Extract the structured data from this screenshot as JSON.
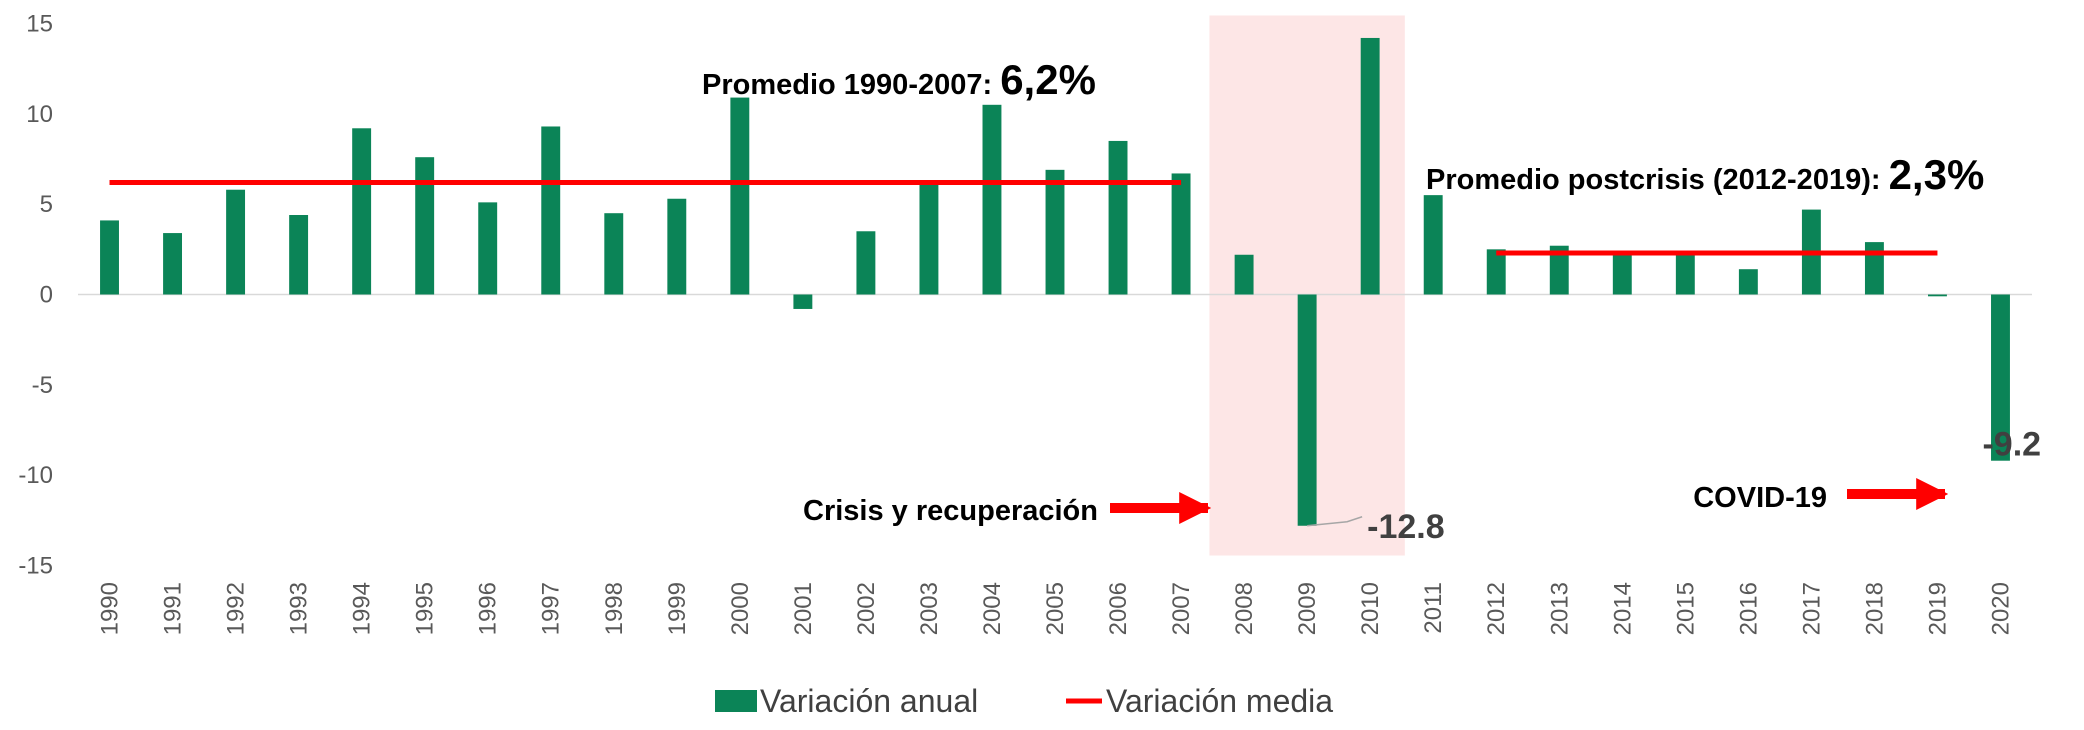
{
  "chart_data": {
    "type": "bar",
    "categories": [
      "1990",
      "1991",
      "1992",
      "1993",
      "1994",
      "1995",
      "1996",
      "1997",
      "1998",
      "1999",
      "2000",
      "2001",
      "2002",
      "2003",
      "2004",
      "2005",
      "2006",
      "2007",
      "2008",
      "2009",
      "2010",
      "2011",
      "2012",
      "2013",
      "2014",
      "2015",
      "2016",
      "2017",
      "2018",
      "2019",
      "2020"
    ],
    "series": [
      {
        "name": "Variación anual",
        "type": "bar",
        "color": "#0b8457",
        "values": [
          4.1,
          3.4,
          5.8,
          4.4,
          9.2,
          7.6,
          5.1,
          9.3,
          4.5,
          5.3,
          10.9,
          -0.8,
          3.5,
          6.2,
          10.5,
          6.9,
          8.5,
          6.7,
          2.2,
          -12.8,
          14.2,
          5.5,
          2.5,
          2.7,
          2.4,
          2.4,
          1.4,
          4.7,
          2.9,
          -0.1,
          -9.2
        ]
      },
      {
        "name": "Variación media",
        "type": "line",
        "color": "#ff0000",
        "values": [
          6.2,
          6.2,
          6.2,
          6.2,
          6.2,
          6.2,
          6.2,
          6.2,
          6.2,
          6.2,
          6.2,
          6.2,
          6.2,
          6.2,
          6.2,
          6.2,
          6.2,
          6.2,
          null,
          null,
          null,
          null,
          2.3,
          2.3,
          2.3,
          2.3,
          2.3,
          2.3,
          2.3,
          2.3,
          null
        ]
      }
    ],
    "ylim": [
      -15,
      15
    ],
    "yticks": [
      -15,
      -10,
      -5,
      0,
      5,
      10,
      15
    ],
    "grid": false,
    "highlight_range": {
      "from": "2008",
      "to": "2010",
      "color": "#fde6e6"
    },
    "annotations": [
      {
        "text": "Promedio 1990-2007: ",
        "emphasis": "6,2%"
      },
      {
        "text": "Promedio postcrisis (2012-2019): ",
        "emphasis": "2,3%"
      },
      {
        "text": "Crisis y recuperación"
      },
      {
        "text": "COVID-19"
      }
    ],
    "labeled_points": [
      19,
      30
    ],
    "legend": "bottom"
  }
}
